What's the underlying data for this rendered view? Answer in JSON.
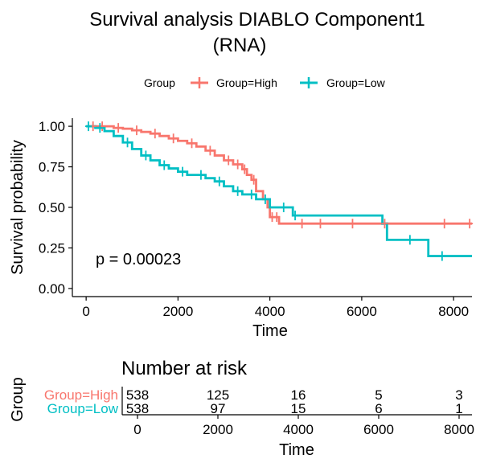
{
  "chart_data": {
    "type": "line",
    "title": "Survival analysis DIABLO Component1 (RNA)",
    "title_lines": [
      "Survival analysis DIABLO Component1",
      "(RNA)"
    ],
    "xlabel": "Time",
    "ylabel": "Survival probability",
    "xlim": [
      -300,
      8400
    ],
    "ylim": [
      -0.05,
      1.05
    ],
    "x_ticks": [
      0,
      2000,
      4000,
      6000,
      8000
    ],
    "y_ticks": [
      0.0,
      0.25,
      0.5,
      0.75,
      1.0
    ],
    "y_tick_labels": [
      "0.00",
      "0.25",
      "0.50",
      "0.75",
      "1.00"
    ],
    "legend": {
      "title": "Group",
      "position": "top",
      "entries": [
        "Group=High",
        "Group=Low"
      ]
    },
    "p_value_text": "p = 0.00023",
    "series": [
      {
        "name": "Group=High",
        "color": "#F8766D",
        "steps": [
          [
            0,
            1.0
          ],
          [
            400,
            1.0
          ],
          [
            600,
            0.99
          ],
          [
            800,
            0.985
          ],
          [
            1000,
            0.975
          ],
          [
            1200,
            0.965
          ],
          [
            1400,
            0.955
          ],
          [
            1600,
            0.94
          ],
          [
            1800,
            0.925
          ],
          [
            2000,
            0.91
          ],
          [
            2200,
            0.895
          ],
          [
            2400,
            0.875
          ],
          [
            2600,
            0.85
          ],
          [
            2800,
            0.82
          ],
          [
            3000,
            0.79
          ],
          [
            3200,
            0.765
          ],
          [
            3400,
            0.735
          ],
          [
            3500,
            0.7
          ],
          [
            3600,
            0.67
          ],
          [
            3700,
            0.6
          ],
          [
            3850,
            0.55
          ],
          [
            3950,
            0.5
          ],
          [
            4000,
            0.44
          ],
          [
            4200,
            0.4
          ],
          [
            8400,
            0.4
          ]
        ],
        "censors": [
          [
            150,
            1.0
          ],
          [
            350,
            1.0
          ],
          [
            700,
            0.99
          ],
          [
            1100,
            0.975
          ],
          [
            1500,
            0.955
          ],
          [
            1900,
            0.925
          ],
          [
            2300,
            0.895
          ],
          [
            2700,
            0.85
          ],
          [
            3100,
            0.79
          ],
          [
            3300,
            0.765
          ],
          [
            3450,
            0.735
          ],
          [
            3650,
            0.67
          ],
          [
            4050,
            0.44
          ],
          [
            4150,
            0.44
          ],
          [
            4700,
            0.4
          ],
          [
            5100,
            0.4
          ],
          [
            5800,
            0.4
          ],
          [
            6500,
            0.4
          ],
          [
            7800,
            0.4
          ],
          [
            8350,
            0.4
          ]
        ]
      },
      {
        "name": "Group=Low",
        "color": "#00BFC4",
        "steps": [
          [
            0,
            1.0
          ],
          [
            200,
            0.99
          ],
          [
            400,
            0.97
          ],
          [
            600,
            0.94
          ],
          [
            800,
            0.9
          ],
          [
            1000,
            0.86
          ],
          [
            1200,
            0.82
          ],
          [
            1400,
            0.79
          ],
          [
            1600,
            0.76
          ],
          [
            1800,
            0.74
          ],
          [
            2000,
            0.72
          ],
          [
            2200,
            0.7
          ],
          [
            2600,
            0.68
          ],
          [
            2800,
            0.66
          ],
          [
            3000,
            0.63
          ],
          [
            3200,
            0.6
          ],
          [
            3400,
            0.58
          ],
          [
            3700,
            0.55
          ],
          [
            4000,
            0.5
          ],
          [
            4500,
            0.45
          ],
          [
            6450,
            0.4
          ],
          [
            6550,
            0.3
          ],
          [
            7450,
            0.2
          ],
          [
            8400,
            0.2
          ]
        ],
        "censors": [
          [
            50,
            1.0
          ],
          [
            300,
            0.99
          ],
          [
            900,
            0.9
          ],
          [
            1300,
            0.82
          ],
          [
            1700,
            0.76
          ],
          [
            2100,
            0.72
          ],
          [
            2500,
            0.7
          ],
          [
            2900,
            0.66
          ],
          [
            3300,
            0.6
          ],
          [
            3600,
            0.58
          ],
          [
            3900,
            0.55
          ],
          [
            4300,
            0.5
          ],
          [
            4550,
            0.45
          ],
          [
            7050,
            0.3
          ],
          [
            7750,
            0.2
          ]
        ]
      }
    ],
    "risk_table": {
      "title": "Number at risk",
      "xlabel": "Time",
      "ylabel": "Group",
      "times": [
        0,
        2000,
        4000,
        6000,
        8000
      ],
      "tick_labels": [
        "0",
        "2000",
        "4000",
        "6000",
        "8000"
      ],
      "rows": [
        {
          "label": "Group=High",
          "color": "#F8766D",
          "counts": [
            "538",
            "125",
            "16",
            "5",
            "3"
          ]
        },
        {
          "label": "Group=Low",
          "color": "#00BFC4",
          "counts": [
            "538",
            "97",
            "15",
            "6",
            "1"
          ]
        }
      ]
    }
  }
}
